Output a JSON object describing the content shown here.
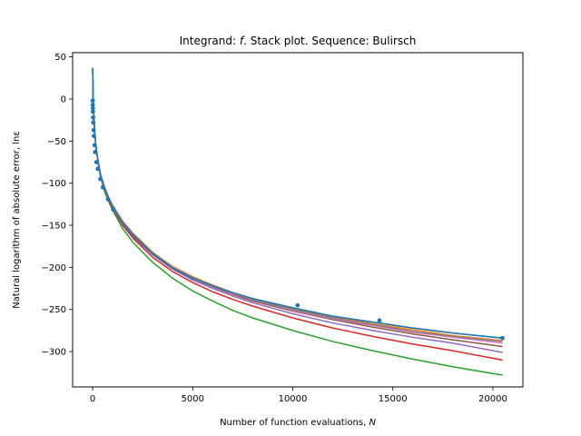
{
  "chart_data": {
    "type": "line",
    "title_prefix": "Integrand: ",
    "title_italic": "f",
    "title_suffix": ". Stack plot. Sequence: Bulirsch",
    "xlabel_text": "Number of function evaluations, ",
    "xlabel_italic": "N",
    "ylabel": "Natural logarithm of absolute error, lnε",
    "xlim": [
      -1000,
      21500
    ],
    "ylim": [
      -342,
      55
    ],
    "xticks": [
      0,
      5000,
      10000,
      15000,
      20000
    ],
    "xtick_labels": [
      "0",
      "5000",
      "10000",
      "15000",
      "20000"
    ],
    "yticks": [
      50,
      0,
      -50,
      -100,
      -150,
      -200,
      -250,
      -300
    ],
    "ytick_labels": [
      "50",
      "0",
      "−50",
      "−100",
      "−150",
      "−200",
      "−250",
      "−300"
    ],
    "series": [
      {
        "color": "#1f77b4",
        "x": [
          5,
          20,
          40,
          70,
          100,
          150,
          200,
          300,
          400,
          600,
          800,
          1000,
          1500,
          2000,
          3000,
          4000,
          5000,
          6000,
          7000,
          8000,
          10000,
          12000,
          14000,
          16000,
          18000,
          20480
        ],
        "y": [
          37,
          5,
          -10,
          -25,
          -38,
          -52,
          -63,
          -78,
          -91,
          -106,
          -118,
          -128,
          -147,
          -161,
          -184,
          -201,
          -213,
          -222,
          -230,
          -237,
          -248,
          -258,
          -265,
          -272,
          -278,
          -284
        ]
      },
      {
        "color": "#ff7f0e",
        "x": [
          5,
          20,
          40,
          70,
          100,
          150,
          200,
          300,
          400,
          600,
          800,
          1000,
          1500,
          2000,
          3000,
          4000,
          5000,
          6000,
          7000,
          8000,
          10000,
          12000,
          14000,
          16000,
          18000,
          20480
        ],
        "y": [
          36,
          4,
          -11,
          -26,
          -39,
          -52,
          -63,
          -78,
          -90,
          -105,
          -117,
          -126,
          -145,
          -159,
          -182,
          -199,
          -211,
          -221,
          -230,
          -237,
          -249,
          -259,
          -267,
          -274,
          -281,
          -287
        ]
      },
      {
        "color": "#2ca02c",
        "x": [
          5,
          20,
          40,
          70,
          100,
          150,
          200,
          300,
          400,
          600,
          800,
          1000,
          1500,
          2000,
          3000,
          4000,
          5000,
          6000,
          7000,
          8000,
          10000,
          12000,
          14000,
          16000,
          18000,
          20480
        ],
        "y": [
          36,
          4,
          -11,
          -26,
          -39,
          -53,
          -64,
          -80,
          -93,
          -110,
          -122,
          -132,
          -154,
          -170,
          -194,
          -213,
          -228,
          -240,
          -251,
          -260,
          -275,
          -288,
          -299,
          -309,
          -318,
          -328
        ]
      },
      {
        "color": "#d62728",
        "x": [
          5,
          20,
          40,
          70,
          100,
          150,
          200,
          300,
          400,
          600,
          800,
          1000,
          1500,
          2000,
          3000,
          4000,
          5000,
          6000,
          7000,
          8000,
          10000,
          12000,
          14000,
          16000,
          18000,
          20480
        ],
        "y": [
          36,
          4,
          -11,
          -26,
          -39,
          -52,
          -63,
          -79,
          -92,
          -108,
          -120,
          -130,
          -150,
          -165,
          -188,
          -205,
          -218,
          -229,
          -238,
          -246,
          -260,
          -272,
          -282,
          -291,
          -299,
          -310
        ]
      },
      {
        "color": "#9467bd",
        "x": [
          5,
          20,
          40,
          70,
          100,
          150,
          200,
          300,
          400,
          600,
          800,
          1000,
          1500,
          2000,
          3000,
          4000,
          5000,
          6000,
          7000,
          8000,
          10000,
          12000,
          14000,
          16000,
          18000,
          20480
        ],
        "y": [
          36,
          4,
          -11,
          -26,
          -39,
          -52,
          -63,
          -78,
          -91,
          -107,
          -119,
          -129,
          -148,
          -163,
          -185,
          -202,
          -215,
          -225,
          -234,
          -242,
          -255,
          -266,
          -275,
          -283,
          -290,
          -301
        ]
      },
      {
        "color": "#8c564b",
        "x": [
          5,
          20,
          40,
          70,
          100,
          150,
          200,
          300,
          400,
          600,
          800,
          1000,
          1500,
          2000,
          3000,
          4000,
          5000,
          6000,
          7000,
          8000,
          10000,
          12000,
          14000,
          16000,
          18000,
          20480
        ],
        "y": [
          36,
          4,
          -11,
          -26,
          -39,
          -52,
          -63,
          -78,
          -91,
          -106,
          -118,
          -128,
          -147,
          -162,
          -184,
          -201,
          -213,
          -223,
          -232,
          -240,
          -252,
          -262,
          -271,
          -279,
          -286,
          -294
        ]
      },
      {
        "color": "#e377c2",
        "x": [
          5,
          20,
          40,
          70,
          100,
          150,
          200,
          300,
          400,
          600,
          800,
          1000,
          1500,
          2000,
          3000,
          4000,
          5000,
          6000,
          7000,
          8000,
          10000,
          12000,
          14000,
          16000,
          18000,
          20480
        ],
        "y": [
          36,
          4,
          -11,
          -26,
          -39,
          -52,
          -63,
          -78,
          -90,
          -106,
          -118,
          -127,
          -146,
          -161,
          -183,
          -200,
          -212,
          -222,
          -231,
          -238,
          -251,
          -261,
          -269,
          -277,
          -283,
          -290
        ]
      },
      {
        "color": "#7f7f7f",
        "x": [
          5,
          20,
          40,
          70,
          100,
          150,
          200,
          300,
          400,
          600,
          800,
          1000,
          1500,
          2000,
          3000,
          4000,
          5000,
          6000,
          7000,
          8000,
          10000,
          12000,
          14000,
          16000,
          18000,
          20480
        ],
        "y": [
          36,
          4,
          -11,
          -26,
          -39,
          -52,
          -63,
          -78,
          -90,
          -105,
          -117,
          -127,
          -146,
          -160,
          -183,
          -200,
          -212,
          -222,
          -230,
          -238,
          -250,
          -260,
          -268,
          -276,
          -282,
          -288
        ]
      },
      {
        "color": "#1f77b4",
        "x": [
          5,
          20,
          40,
          70,
          100,
          150,
          200,
          300,
          400,
          600,
          800,
          1000,
          1500,
          2000,
          3000,
          4000,
          5000,
          6000,
          7000,
          8000,
          10000,
          12000,
          14000,
          16000,
          18000,
          20480
        ],
        "y": [
          37,
          5,
          -10,
          -25,
          -38,
          -52,
          -63,
          -78,
          -91,
          -106,
          -118,
          -128,
          -147,
          -161,
          -184,
          -201,
          -213,
          -222,
          -230,
          -237,
          -248,
          -258,
          -265,
          -272,
          -278,
          -284
        ]
      }
    ],
    "markers": {
      "color": "#1f77b4",
      "x": [
        4,
        8,
        12,
        16,
        24,
        32,
        48,
        64,
        96,
        128,
        192,
        256,
        384,
        512,
        768,
        1024,
        10240,
        14336,
        20480
      ],
      "y": [
        -2,
        -7,
        -11,
        -15,
        -22,
        -28,
        -37,
        -44,
        -55,
        -63,
        -75,
        -83,
        -95,
        -105,
        -119,
        -131,
        -245,
        -263,
        -284
      ]
    }
  }
}
